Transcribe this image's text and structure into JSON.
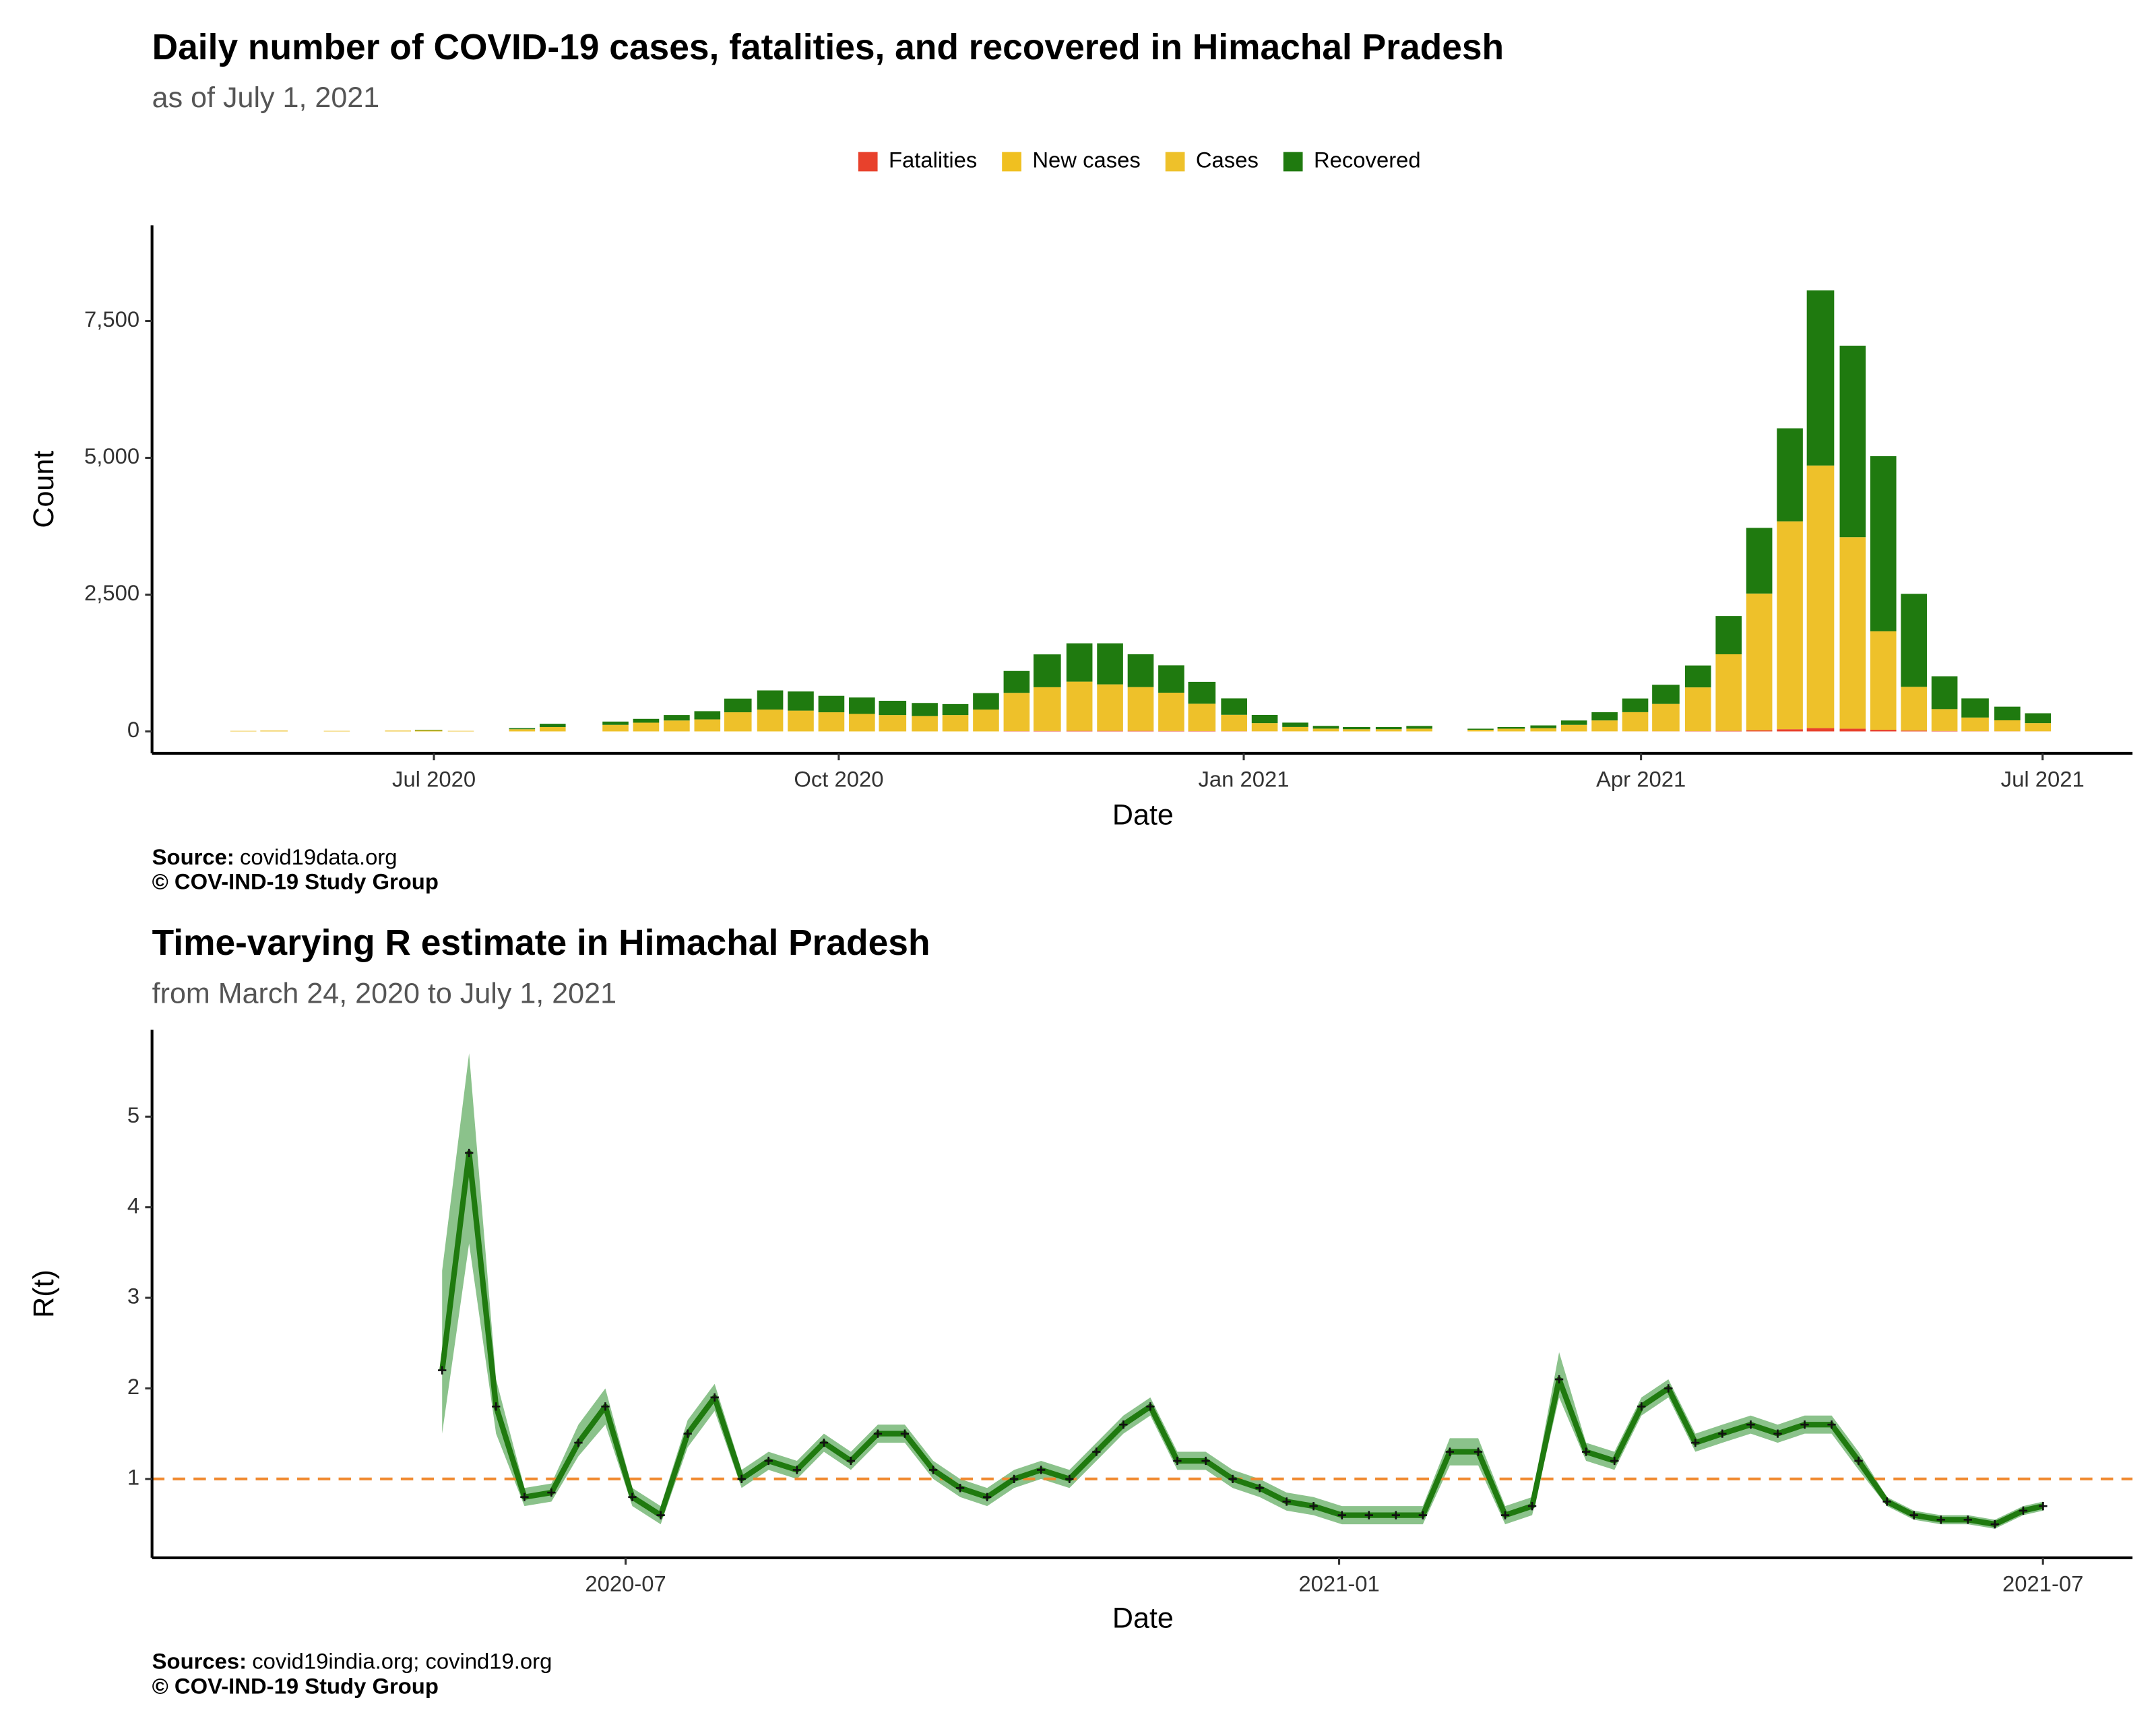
{
  "chart_data": [
    {
      "type": "bar",
      "title": "Daily number of COVID-19 cases, fatalities, and recovered in Himachal Pradesh",
      "subtitle": "as of July  1, 2021",
      "xlabel": "Date",
      "ylabel": "Count",
      "source_label": "Source:",
      "source": "covid19data.org",
      "credit": "© COV-IND-19 Study Group",
      "x": [
        2020.36,
        2020.379,
        2020.398,
        2020.418,
        2020.437,
        2020.456,
        2020.475,
        2020.494,
        2020.514,
        2020.533,
        2020.552,
        2020.571,
        2020.59,
        2020.61,
        2020.629,
        2020.648,
        2020.667,
        2020.686,
        2020.706,
        2020.725,
        2020.744,
        2020.763,
        2020.782,
        2020.802,
        2020.821,
        2020.84,
        2020.859,
        2020.878,
        2020.898,
        2020.917,
        2020.936,
        2020.955,
        2020.974,
        2020.994,
        2021.013,
        2021.032,
        2021.051,
        2021.07,
        2021.09,
        2021.109,
        2021.128,
        2021.147,
        2021.166,
        2021.186,
        2021.205,
        2021.224,
        2021.243,
        2021.262,
        2021.282,
        2021.301,
        2021.32,
        2021.339,
        2021.358,
        2021.378,
        2021.397,
        2021.416,
        2021.435,
        2021.454,
        2021.474,
        2021.493
      ],
      "series": [
        {
          "name": "Fatalities",
          "color": "#e8412c",
          "values": [
            0,
            0,
            0,
            0,
            0,
            0,
            0,
            0,
            0,
            0,
            0,
            0,
            0,
            0,
            0,
            0,
            0,
            0,
            0,
            0,
            0,
            0,
            0,
            0,
            0,
            0,
            5,
            8,
            10,
            10,
            10,
            8,
            6,
            4,
            2,
            1,
            1,
            0,
            0,
            0,
            0,
            0,
            0,
            0,
            0,
            1,
            2,
            3,
            5,
            10,
            20,
            40,
            60,
            50,
            30,
            15,
            8,
            4,
            3,
            2
          ]
        },
        {
          "name": "New cases",
          "color": "#f0c020",
          "values": [
            null,
            null,
            null,
            null,
            null,
            null,
            null,
            null,
            null,
            null,
            null,
            null,
            null,
            null,
            null,
            null,
            null,
            null,
            null,
            null,
            null,
            null,
            null,
            null,
            null,
            null,
            null,
            null,
            null,
            null,
            null,
            null,
            null,
            null,
            null,
            null,
            null,
            null,
            null,
            null,
            null,
            null,
            null,
            null,
            null,
            null,
            null,
            null,
            null,
            null,
            null,
            null,
            null,
            null,
            null,
            null,
            null,
            null,
            null,
            null
          ]
        },
        {
          "name": "Cases",
          "color": "#eec12a",
          "values": [
            0,
            10,
            15,
            0,
            10,
            0,
            15,
            20,
            10,
            0,
            40,
            80,
            0,
            120,
            160,
            200,
            220,
            350,
            400,
            380,
            350,
            320,
            300,
            280,
            300,
            400,
            700,
            800,
            900,
            850,
            800,
            700,
            500,
            300,
            150,
            80,
            50,
            40,
            40,
            50,
            0,
            30,
            50,
            60,
            120,
            200,
            350,
            500,
            800,
            1400,
            2500,
            3800,
            4800,
            3500,
            1800,
            800,
            400,
            250,
            200,
            150
          ]
        },
        {
          "name": "Recovered",
          "color": "#1f7a0f",
          "values": [
            0,
            0,
            0,
            0,
            0,
            0,
            0,
            10,
            0,
            0,
            20,
            60,
            0,
            60,
            70,
            100,
            150,
            250,
            350,
            350,
            300,
            300,
            260,
            240,
            200,
            300,
            400,
            600,
            700,
            750,
            600,
            500,
            400,
            300,
            150,
            80,
            50,
            40,
            40,
            50,
            0,
            20,
            30,
            50,
            80,
            150,
            250,
            350,
            400,
            700,
            1200,
            1700,
            3200,
            3500,
            3200,
            1700,
            600,
            350,
            250,
            180
          ]
        }
      ],
      "xlim": [
        2020.3223,
        2021.5517
      ],
      "xticks": [
        {
          "value": 2020.4973,
          "label": "Jul 2020"
        },
        {
          "value": 2020.7486,
          "label": "Oct 2020"
        },
        {
          "value": 2021.0,
          "label": "Jan 2021"
        },
        {
          "value": 2021.2466,
          "label": "Apr 2021"
        },
        {
          "value": 2021.4959,
          "label": "Jul 2021"
        }
      ],
      "ylim": [
        -400,
        9250
      ],
      "yticks": [
        0,
        {
          "value": 2500,
          "label": "2,500"
        },
        {
          "value": 5000,
          "label": "5,000"
        },
        {
          "value": 7500,
          "label": "7,500"
        }
      ],
      "legend": "top"
    },
    {
      "type": "line",
      "title": "Time-varying R estimate in Himachal Pradesh",
      "subtitle": "from March 24, 2020 to July  1, 2021",
      "xlabel": "Date",
      "ylabel": "R(t)",
      "source_label": "Sources:",
      "source": "covid19india.org; covind19.org",
      "credit": "© COV-IND-19 Study Group",
      "x": [
        2020.368,
        2020.387,
        2020.406,
        2020.426,
        2020.445,
        2020.464,
        2020.483,
        2020.502,
        2020.522,
        2020.541,
        2020.56,
        2020.579,
        2020.598,
        2020.618,
        2020.637,
        2020.656,
        2020.675,
        2020.694,
        2020.714,
        2020.733,
        2020.752,
        2020.771,
        2020.79,
        2020.81,
        2020.829,
        2020.848,
        2020.867,
        2020.886,
        2020.906,
        2020.925,
        2020.944,
        2020.963,
        2020.982,
        2021.002,
        2021.021,
        2021.04,
        2021.059,
        2021.078,
        2021.098,
        2021.117,
        2021.136,
        2021.155,
        2021.174,
        2021.194,
        2021.213,
        2021.232,
        2021.251,
        2021.27,
        2021.29,
        2021.309,
        2021.328,
        2021.347,
        2021.366,
        2021.386,
        2021.405,
        2021.424,
        2021.443,
        2021.462,
        2021.482,
        2021.496
      ],
      "values": [
        2.2,
        4.6,
        1.8,
        0.8,
        0.85,
        1.4,
        1.8,
        0.8,
        0.6,
        1.5,
        1.9,
        1.0,
        1.2,
        1.1,
        1.4,
        1.2,
        1.5,
        1.5,
        1.1,
        0.9,
        0.8,
        1.0,
        1.1,
        1.0,
        1.3,
        1.6,
        1.8,
        1.2,
        1.2,
        1.0,
        0.9,
        0.75,
        0.7,
        0.6,
        0.6,
        0.6,
        0.6,
        1.3,
        1.3,
        0.6,
        0.7,
        2.1,
        1.3,
        1.2,
        1.8,
        2.0,
        1.4,
        1.5,
        1.6,
        1.5,
        1.6,
        1.6,
        1.2,
        0.75,
        0.6,
        0.55,
        0.55,
        0.5,
        0.65,
        0.7
      ],
      "lower": [
        1.5,
        3.6,
        1.5,
        0.7,
        0.75,
        1.25,
        1.6,
        0.7,
        0.5,
        1.35,
        1.75,
        0.9,
        1.1,
        1.0,
        1.3,
        1.1,
        1.4,
        1.4,
        1.0,
        0.8,
        0.7,
        0.9,
        1.0,
        0.9,
        1.2,
        1.5,
        1.7,
        1.1,
        1.1,
        0.9,
        0.8,
        0.65,
        0.6,
        0.5,
        0.5,
        0.5,
        0.5,
        1.15,
        1.15,
        0.5,
        0.6,
        1.9,
        1.2,
        1.1,
        1.7,
        1.9,
        1.3,
        1.4,
        1.5,
        1.4,
        1.5,
        1.5,
        1.1,
        0.7,
        0.55,
        0.5,
        0.5,
        0.45,
        0.6,
        0.65
      ],
      "upper": [
        3.3,
        5.7,
        2.1,
        0.9,
        0.95,
        1.6,
        2.0,
        0.9,
        0.7,
        1.65,
        2.05,
        1.1,
        1.3,
        1.2,
        1.5,
        1.3,
        1.6,
        1.6,
        1.2,
        1.0,
        0.9,
        1.1,
        1.2,
        1.1,
        1.4,
        1.7,
        1.9,
        1.3,
        1.3,
        1.1,
        1.0,
        0.85,
        0.8,
        0.7,
        0.7,
        0.7,
        0.7,
        1.45,
        1.45,
        0.7,
        0.8,
        2.4,
        1.4,
        1.3,
        1.9,
        2.1,
        1.5,
        1.6,
        1.7,
        1.6,
        1.7,
        1.7,
        1.3,
        0.8,
        0.65,
        0.6,
        0.6,
        0.55,
        0.7,
        0.75
      ],
      "color": "#1f7a0f",
      "band_color": "#5aa85a",
      "marker_color": "#111111",
      "hline": 1,
      "hline_color": "#f08a30",
      "xlim": [
        2020.1636,
        2021.559
      ],
      "xticks": [
        {
          "value": 2020.4973,
          "label": "2020-07"
        },
        {
          "value": 2021.0,
          "label": "2021-01"
        },
        {
          "value": 2021.4959,
          "label": "2021-07"
        }
      ],
      "ylim": [
        0.13,
        5.96
      ],
      "yticks": [
        1,
        2,
        3,
        4,
        5
      ]
    }
  ]
}
